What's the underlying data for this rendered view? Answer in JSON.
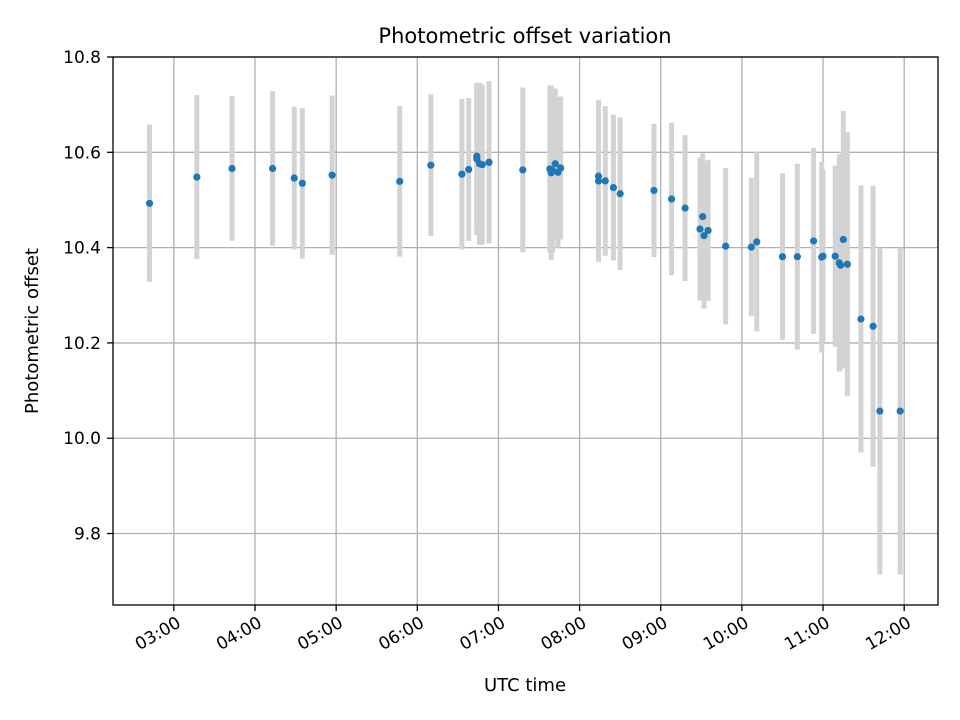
{
  "chart_data": {
    "type": "scatter",
    "title": "Photometric offset variation",
    "xlabel": "UTC time",
    "ylabel": "Photometric offset",
    "xlim": [
      "02:15",
      "12:25"
    ],
    "ylim": [
      9.65,
      10.8
    ],
    "grid": true,
    "x_ticks": [
      "03:00",
      "04:00",
      "05:00",
      "06:00",
      "07:00",
      "08:00",
      "09:00",
      "10:00",
      "11:00",
      "12:00"
    ],
    "y_ticks": [
      "9.8",
      "10.0",
      "10.2",
      "10.4",
      "10.6",
      "10.8"
    ],
    "colors": {
      "point": "#1f77b4",
      "errorbar": "#d3d3d3",
      "grid": "#b0b0b0"
    },
    "series": [
      {
        "x": [
          "02:42",
          "03:17",
          "03:43",
          "04:13",
          "04:29",
          "04:35",
          "04:57",
          "05:47",
          "06:10",
          "06:33",
          "06:38",
          "06:44",
          "06:44",
          "06:46",
          "06:48",
          "06:53",
          "06:53",
          "07:18",
          "07:38",
          "07:39",
          "07:40",
          "07:42",
          "07:44",
          "07:46",
          "08:14",
          "08:14",
          "08:19",
          "08:25",
          "08:30",
          "08:55",
          "09:08",
          "09:18",
          "09:29",
          "09:31",
          "09:32",
          "09:35",
          "09:48",
          "10:07",
          "10:11",
          "10:30",
          "10:41",
          "10:53",
          "10:59",
          "11:00",
          "11:09",
          "11:12",
          "11:13",
          "11:15",
          "11:18",
          "11:28",
          "11:37",
          "11:42",
          "11:57"
        ],
        "y": [
          10.493,
          10.548,
          10.566,
          10.566,
          10.546,
          10.535,
          10.552,
          10.539,
          10.573,
          10.554,
          10.564,
          10.586,
          10.592,
          10.576,
          10.574,
          10.579,
          10.579,
          10.563,
          10.565,
          10.557,
          10.562,
          10.576,
          10.558,
          10.567,
          10.54,
          10.55,
          10.54,
          10.526,
          10.513,
          10.52,
          10.502,
          10.483,
          10.439,
          10.465,
          10.425,
          10.436,
          10.403,
          10.401,
          10.412,
          10.381,
          10.381,
          10.414,
          10.38,
          10.382,
          10.382,
          10.368,
          10.363,
          10.417,
          10.365,
          10.25,
          10.235,
          10.057,
          10.057
        ],
        "yerr": [
          0.165,
          0.172,
          0.152,
          0.162,
          0.15,
          0.158,
          0.167,
          0.158,
          0.149,
          0.158,
          0.15,
          0.16,
          0.15,
          0.17,
          0.168,
          0.17,
          0.17,
          0.173,
          0.175,
          0.183,
          0.172,
          0.158,
          0.158,
          0.15,
          0.17,
          0.16,
          0.157,
          0.153,
          0.16,
          0.14,
          0.16,
          0.153,
          0.15,
          0.133,
          0.153,
          0.148,
          0.164,
          0.145,
          0.188,
          0.175,
          0.195,
          0.195,
          0.2,
          0.182,
          0.19,
          0.228,
          0.219,
          0.27,
          0.277,
          0.28,
          0.295,
          0.343,
          0.343
        ]
      }
    ]
  }
}
